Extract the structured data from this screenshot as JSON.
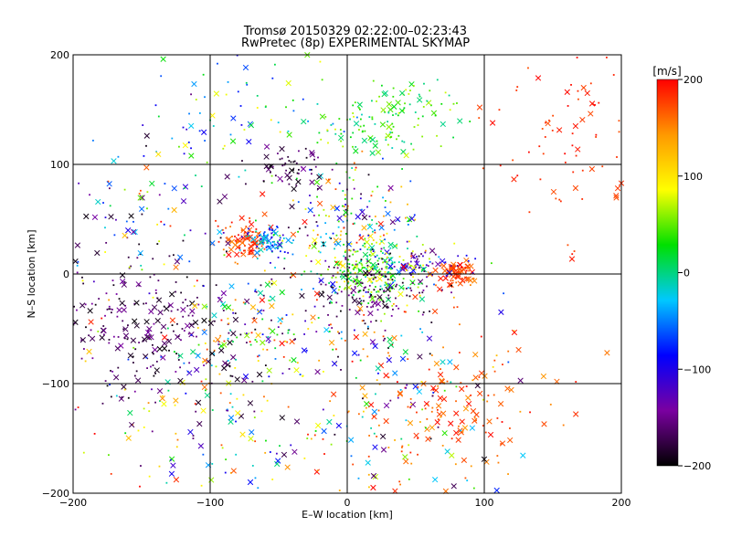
{
  "chart_data": {
    "type": "scatter",
    "title": "Tromsø 20150329 02:22:00–02:23:43",
    "subtitle": "RwPretec (8p) EXPERIMENTAL SKYMAP",
    "xlabel": "E–W location [km]",
    "ylabel": "N–S location [km]",
    "xlim": [
      -200,
      200
    ],
    "ylim": [
      -200,
      200
    ],
    "xticks": [
      -200,
      -100,
      0,
      100,
      200
    ],
    "yticks": [
      -200,
      -100,
      0,
      100,
      200
    ],
    "grid": true,
    "marker_types": [
      "x",
      "dot"
    ],
    "colorbar": {
      "label": "[m/s]",
      "range": [
        -200,
        200
      ],
      "ticks": [
        -200,
        -100,
        0,
        100,
        200
      ],
      "colormap": "black-purple-blue-cyan-green-yellow-orange-red",
      "stops": [
        "#000000",
        "#7a00a0",
        "#0000ff",
        "#00c8ff",
        "#00e000",
        "#ffff00",
        "#ff9900",
        "#ff0000"
      ],
      "placement": "right"
    },
    "clusters": [
      {
        "x": 80,
        "y": 0,
        "sx": 6,
        "sy": 6,
        "count": 70,
        "v": [
          150,
          200
        ],
        "x_fraction": 0.55
      },
      {
        "x": 60,
        "y": 8,
        "sx": 14,
        "sy": 6,
        "count": 55,
        "v": [
          -160,
          -60
        ],
        "x_fraction": 0.25
      },
      {
        "x": 20,
        "y": 0,
        "sx": 18,
        "sy": 14,
        "count": 230,
        "v": [
          -20,
          100
        ],
        "x_fraction": 0.1
      },
      {
        "x": 20,
        "y": -15,
        "sx": 22,
        "sy": 18,
        "count": 140,
        "v": [
          -200,
          -140
        ],
        "x_fraction": 0.1
      },
      {
        "x": -75,
        "y": 32,
        "sx": 10,
        "sy": 9,
        "count": 95,
        "v": [
          150,
          200
        ],
        "x_fraction": 0.35
      },
      {
        "x": -58,
        "y": 30,
        "sx": 8,
        "sy": 8,
        "count": 80,
        "v": [
          -120,
          0
        ],
        "x_fraction": 0.25
      },
      {
        "x": -150,
        "y": -50,
        "sx": 45,
        "sy": 35,
        "count": 260,
        "v": [
          -200,
          -140
        ],
        "x_fraction": 0.35
      },
      {
        "x": -70,
        "y": -50,
        "sx": 40,
        "sy": 30,
        "count": 150,
        "v": [
          -200,
          200
        ],
        "x_fraction": 0.3
      },
      {
        "x": 0,
        "y": 45,
        "sx": 28,
        "sy": 28,
        "count": 220,
        "v": [
          -200,
          200
        ],
        "x_fraction": 0.15
      },
      {
        "x": 15,
        "y": 130,
        "sx": 20,
        "sy": 14,
        "count": 80,
        "v": [
          -20,
          80
        ],
        "x_fraction": 0.25
      },
      {
        "x": 50,
        "y": 150,
        "sx": 22,
        "sy": 16,
        "count": 60,
        "v": [
          -10,
          80
        ],
        "x_fraction": 0.25
      },
      {
        "x": -45,
        "y": 95,
        "sx": 18,
        "sy": 10,
        "count": 60,
        "v": [
          -200,
          -140
        ],
        "x_fraction": 0.3
      },
      {
        "x": 160,
        "y": 130,
        "sx": 28,
        "sy": 45,
        "count": 90,
        "v": [
          170,
          200
        ],
        "x_fraction": 0.3
      },
      {
        "x": 80,
        "y": -120,
        "sx": 35,
        "sy": 40,
        "count": 150,
        "v": [
          140,
          200
        ],
        "x_fraction": 0.4
      },
      {
        "x": 40,
        "y": -80,
        "sx": 40,
        "sy": 35,
        "count": 90,
        "v": [
          -200,
          200
        ],
        "x_fraction": 0.35
      },
      {
        "x": -100,
        "y": -120,
        "sx": 60,
        "sy": 45,
        "count": 180,
        "v": [
          -200,
          200
        ],
        "x_fraction": 0.3
      },
      {
        "x": -80,
        "y": 150,
        "sx": 40,
        "sy": 30,
        "count": 80,
        "v": [
          -100,
          100
        ],
        "x_fraction": 0.3
      },
      {
        "x": -150,
        "y": 60,
        "sx": 40,
        "sy": 50,
        "count": 110,
        "v": [
          -200,
          200
        ],
        "x_fraction": 0.3
      },
      {
        "x": 30,
        "y": -160,
        "sx": 60,
        "sy": 25,
        "count": 70,
        "v": [
          -200,
          200
        ],
        "x_fraction": 0.25
      }
    ]
  }
}
